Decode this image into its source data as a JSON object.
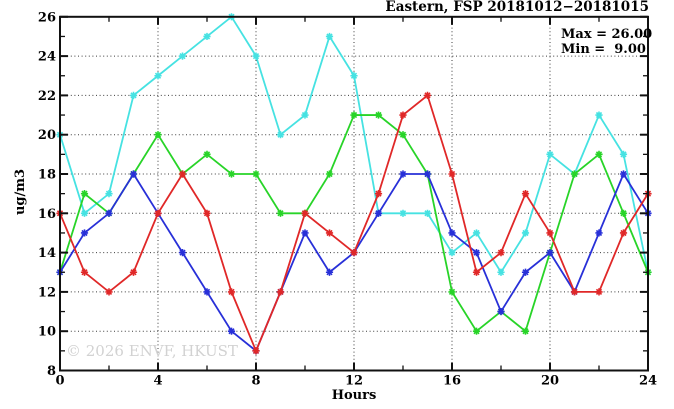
{
  "chart_data": {
    "type": "line",
    "title": "Eastern, FSP 20181012−20181015",
    "xlabel": "Hours",
    "ylabel": "ug/m3",
    "xlim": [
      0,
      24
    ],
    "ylim": [
      8,
      26
    ],
    "grid": "dotted at major ticks",
    "legend_position": "top-right, text only",
    "x": [
      0,
      1,
      2,
      3,
      4,
      5,
      6,
      7,
      8,
      9,
      10,
      11,
      12,
      13,
      14,
      15,
      16,
      17,
      18,
      19,
      20,
      21,
      22,
      23,
      24
    ],
    "x_ticks": {
      "major": [
        0,
        4,
        8,
        12,
        16,
        20,
        24
      ],
      "labels": [
        "0",
        "4",
        "8",
        "12",
        "16",
        "20",
        "24"
      ],
      "minor_step": 2
    },
    "y_ticks": {
      "major": [
        8,
        10,
        12,
        14,
        16,
        18,
        20,
        22,
        24,
        26
      ],
      "labels": [
        "8",
        "10",
        "12",
        "14",
        "16",
        "18",
        "20",
        "22",
        "24",
        "26"
      ],
      "minor_step": 1
    },
    "series": [
      {
        "name": "cyan",
        "color": "#46e2e2",
        "values": [
          20,
          16,
          17,
          22,
          23,
          24,
          25,
          26,
          24,
          20,
          21,
          25,
          23,
          16,
          16,
          16,
          14,
          15,
          13,
          15,
          19,
          18,
          21,
          19,
          13
        ]
      },
      {
        "name": "green",
        "color": "#28d428",
        "values": [
          13,
          17,
          16,
          18,
          20,
          18,
          19,
          18,
          18,
          16,
          16,
          18,
          21,
          21,
          20,
          18,
          12,
          10,
          11,
          10,
          14,
          18,
          19,
          16,
          13
        ]
      },
      {
        "name": "blue",
        "color": "#2830d8",
        "values": [
          13,
          15,
          16,
          18,
          16,
          14,
          12,
          10,
          9,
          12,
          15,
          13,
          14,
          16,
          18,
          18,
          15,
          14,
          11,
          13,
          14,
          12,
          15,
          18,
          16
        ]
      },
      {
        "name": "red",
        "color": "#e02828",
        "values": [
          16,
          13,
          12,
          13,
          16,
          18,
          16,
          12,
          9,
          12,
          16,
          15,
          14,
          17,
          21,
          22,
          18,
          13,
          14,
          17,
          15,
          12,
          12,
          15,
          17
        ]
      }
    ],
    "annotations": {
      "max_label": "Max = 26.00",
      "min_label": "Min =  9.00"
    },
    "watermark": "© 2026 ENVF, HKUST"
  }
}
